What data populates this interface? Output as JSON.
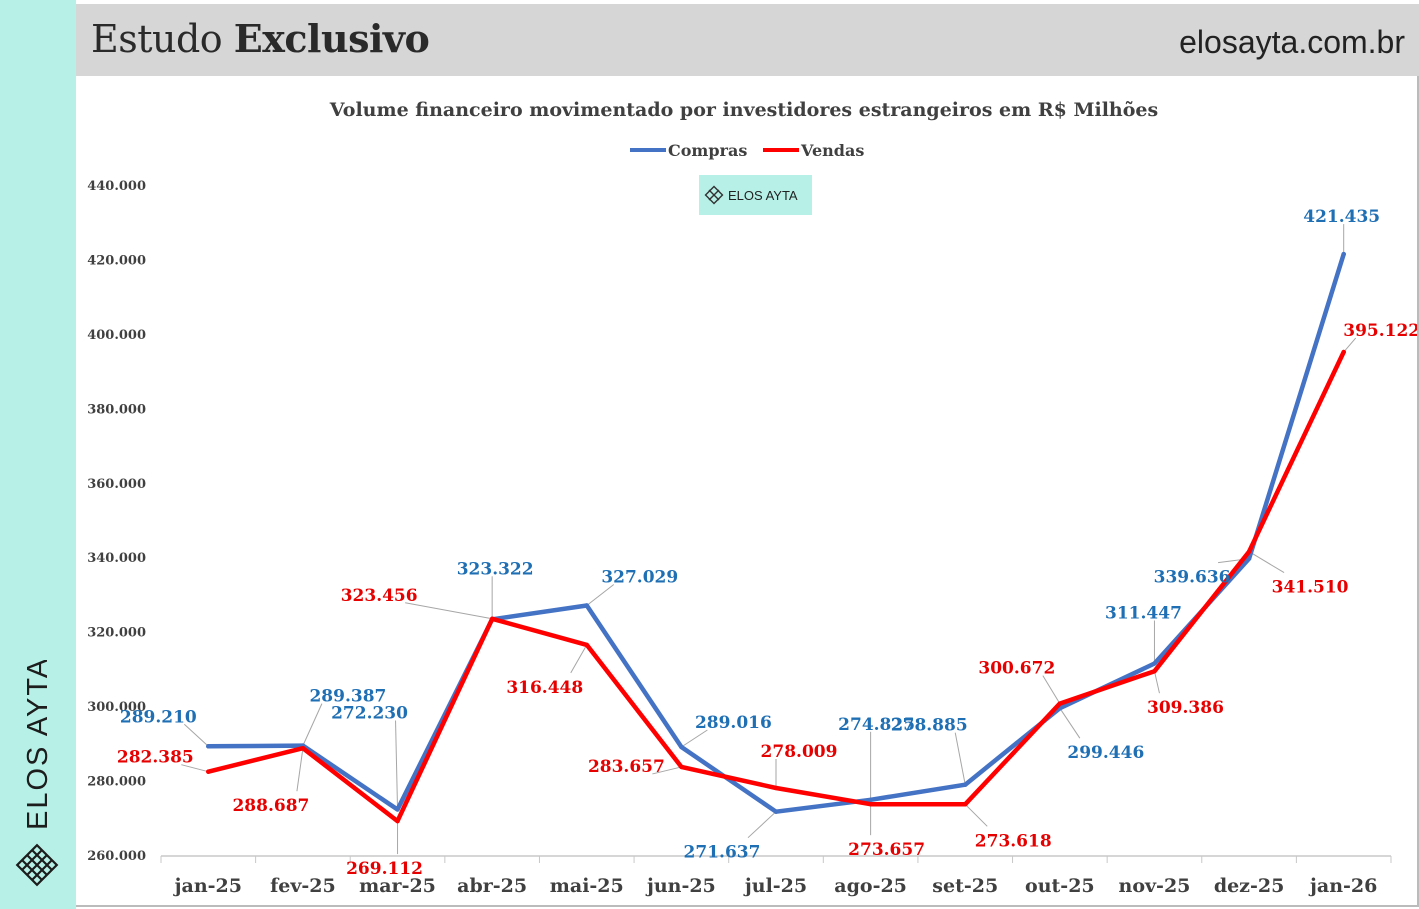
{
  "header": {
    "title_regular": "Estudo",
    "title_bold": "Exclusivo",
    "site": "elosayta.com.br"
  },
  "sidebar": {
    "brand": "ELOS AYTA"
  },
  "watermark": {
    "text": "ELOS AYTA"
  },
  "colors": {
    "compras": "#4472c4",
    "vendas": "#ff0000",
    "compras_label": "#1f6fb4",
    "vendas_label": "#e60000",
    "accent": "#b6f0e7"
  },
  "chart_data": {
    "type": "line",
    "title": "Volume financeiro movimentado por investidores estrangeiros em R$ Milhões",
    "legend_position": "top-center",
    "categories": [
      "jan-25",
      "fev-25",
      "mar-25",
      "abr-25",
      "mai-25",
      "jun-25",
      "jul-25",
      "ago-25",
      "set-25",
      "out-25",
      "nov-25",
      "dez-25",
      "jan-26"
    ],
    "series": [
      {
        "name": "Compras",
        "values": [
          289210,
          289387,
          272230,
          323322,
          327029,
          289016,
          271637,
          274825,
          278885,
          299446,
          311447,
          339636,
          421435
        ],
        "labels": [
          "289.210",
          "289.387",
          "272.230",
          "323.322",
          "327.029",
          "289.016",
          "271.637",
          "274.825",
          "278.885",
          "299.446",
          "311.447",
          "339.636",
          "421.435"
        ]
      },
      {
        "name": "Vendas",
        "values": [
          282385,
          288687,
          269112,
          323456,
          316448,
          283657,
          278009,
          273657,
          273618,
          300672,
          309386,
          341510,
          395122
        ],
        "labels": [
          "282.385",
          "288.687",
          "269.112",
          "323.456",
          "316.448",
          "283.657",
          "278.009",
          "273.657",
          "273.618",
          "300.672",
          "309.386",
          "341.510",
          "395.122"
        ]
      }
    ],
    "ylim": [
      260000,
      440000
    ],
    "yticks": [
      260000,
      280000,
      300000,
      320000,
      340000,
      360000,
      380000,
      400000,
      420000,
      440000
    ],
    "ytick_labels": [
      "260.000",
      "280.000",
      "300.000",
      "320.000",
      "340.000",
      "360.000",
      "380.000",
      "400.000",
      "420.000",
      "440.000"
    ],
    "xlabel": "",
    "ylabel": "",
    "grid": false
  }
}
